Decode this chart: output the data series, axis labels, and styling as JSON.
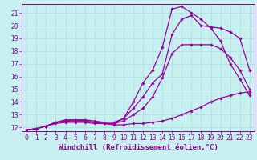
{
  "xlabel": "Windchill (Refroidissement éolien,°C)",
  "ylabel": "",
  "bg_color": "#c8f0f0",
  "line_color": "#990099",
  "grid_color": "#a8dede",
  "xlim": [
    -0.5,
    23.5
  ],
  "ylim": [
    11.7,
    21.7
  ],
  "xticks": [
    0,
    1,
    2,
    3,
    4,
    5,
    6,
    7,
    8,
    9,
    10,
    11,
    12,
    13,
    14,
    15,
    16,
    17,
    18,
    19,
    20,
    21,
    22,
    23
  ],
  "yticks": [
    12,
    13,
    14,
    15,
    16,
    17,
    18,
    19,
    20,
    21
  ],
  "lines": [
    {
      "x": [
        0,
        1,
        2,
        3,
        4,
        5,
        6,
        7,
        8,
        9,
        10,
        11,
        12,
        13,
        14,
        15,
        16,
        17,
        18,
        19,
        20,
        21,
        22,
        23
      ],
      "y": [
        11.8,
        11.9,
        12.1,
        12.3,
        12.4,
        12.4,
        12.4,
        12.3,
        12.3,
        12.2,
        12.2,
        12.3,
        12.3,
        12.4,
        12.5,
        12.7,
        13.0,
        13.3,
        13.6,
        14.0,
        14.3,
        14.5,
        14.7,
        14.8
      ]
    },
    {
      "x": [
        0,
        1,
        2,
        3,
        4,
        5,
        6,
        7,
        8,
        9,
        10,
        11,
        12,
        13,
        14,
        15,
        16,
        17,
        18,
        19,
        20,
        21,
        22,
        23
      ],
      "y": [
        11.8,
        11.9,
        12.1,
        12.4,
        12.5,
        12.5,
        12.5,
        12.4,
        12.3,
        12.3,
        12.5,
        13.0,
        13.5,
        14.4,
        15.9,
        17.8,
        18.5,
        18.5,
        18.5,
        18.5,
        18.2,
        17.5,
        16.5,
        15.0
      ]
    },
    {
      "x": [
        0,
        1,
        2,
        3,
        4,
        5,
        6,
        7,
        8,
        9,
        10,
        11,
        12,
        13,
        14,
        15,
        16,
        17,
        18,
        19,
        20,
        21,
        22,
        23
      ],
      "y": [
        11.8,
        11.9,
        12.1,
        12.4,
        12.5,
        12.6,
        12.6,
        12.5,
        12.4,
        12.4,
        12.7,
        13.5,
        14.4,
        15.5,
        16.2,
        19.3,
        20.5,
        20.8,
        20.0,
        19.9,
        19.8,
        19.5,
        19.0,
        16.5
      ]
    },
    {
      "x": [
        0,
        1,
        2,
        3,
        4,
        5,
        6,
        7,
        8,
        9,
        10,
        11,
        12,
        13,
        14,
        15,
        16,
        17,
        18,
        19,
        20,
        21,
        22,
        23
      ],
      "y": [
        11.8,
        11.9,
        12.1,
        12.4,
        12.6,
        12.6,
        12.5,
        12.4,
        12.3,
        12.3,
        12.7,
        14.0,
        15.5,
        16.5,
        18.3,
        21.3,
        21.5,
        21.0,
        20.5,
        19.8,
        18.8,
        17.0,
        15.8,
        14.5
      ]
    }
  ],
  "font_color": "#880088",
  "tick_fontsize": 5.5,
  "label_fontsize": 6.5,
  "marker": "D",
  "markersize": 1.8,
  "linewidth": 0.9
}
